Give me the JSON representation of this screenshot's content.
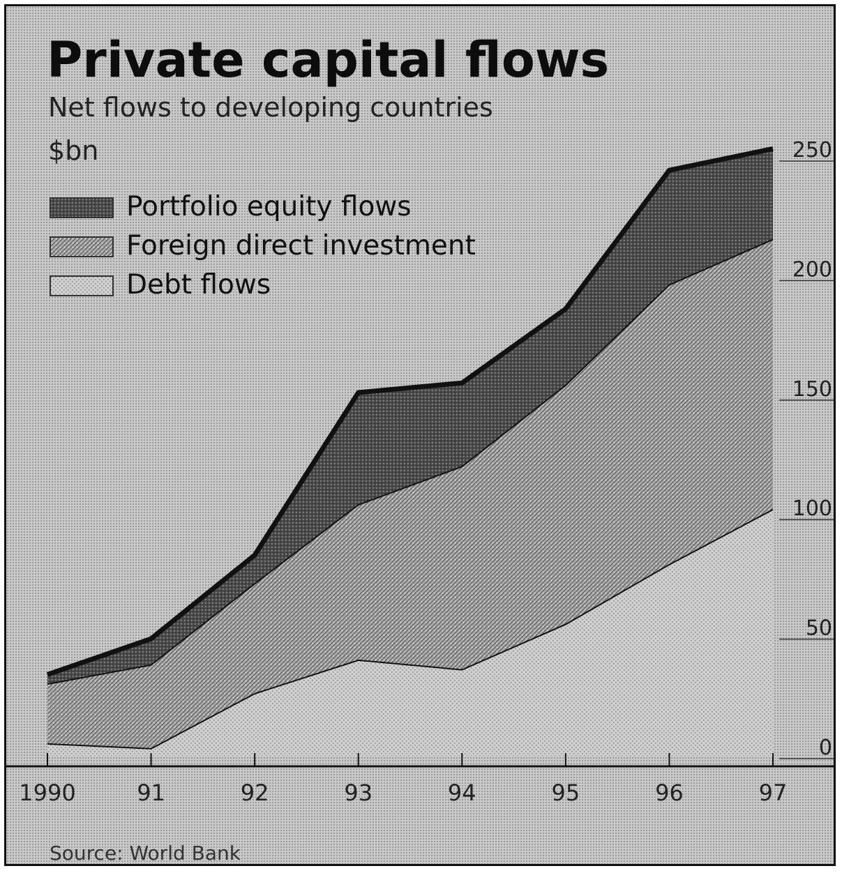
{
  "header": {
    "title": "Private capital flows",
    "subtitle": "Net flows to developing countries",
    "unit": "$bn"
  },
  "legend": [
    {
      "label": "Portfolio equity flows",
      "pattern": "dark"
    },
    {
      "label": "Foreign direct investment",
      "pattern": "medium"
    },
    {
      "label": "Debt flows",
      "pattern": "light"
    }
  ],
  "footer": {
    "source": "Source: World Bank"
  },
  "colors": {
    "dark": "#3a3a3a",
    "medium": "#8f8f8f",
    "light": "#bdbdbd",
    "outline": "#111111"
  },
  "chart_data": {
    "type": "area",
    "stacked": true,
    "title": "Private capital flows",
    "subtitle": "Net flows to developing countries",
    "ylabel": "$bn",
    "y_axis_side": "right",
    "ylim": [
      0,
      250
    ],
    "yticks": [
      0,
      50,
      100,
      150,
      200,
      250
    ],
    "ytick_labels": [
      "0",
      "50",
      "100",
      "150",
      "200",
      "250"
    ],
    "x": [
      1990,
      1991,
      1992,
      1993,
      1994,
      1995,
      1996,
      1997
    ],
    "xtick_labels": [
      "1990",
      "91",
      "92",
      "93",
      "94",
      "95",
      "96",
      "97"
    ],
    "series": [
      {
        "name": "Debt flows",
        "values": [
          5,
          3,
          26,
          40,
          36,
          55,
          80,
          103
        ]
      },
      {
        "name": "Foreign direct investment",
        "values": [
          25,
          35,
          46,
          65,
          85,
          100,
          117,
          113
        ]
      },
      {
        "name": "Portfolio equity flows",
        "values": [
          4,
          11,
          12,
          47,
          35,
          32,
          48,
          38
        ]
      }
    ],
    "legend_position": "top-left",
    "source": "Source: World Bank"
  }
}
